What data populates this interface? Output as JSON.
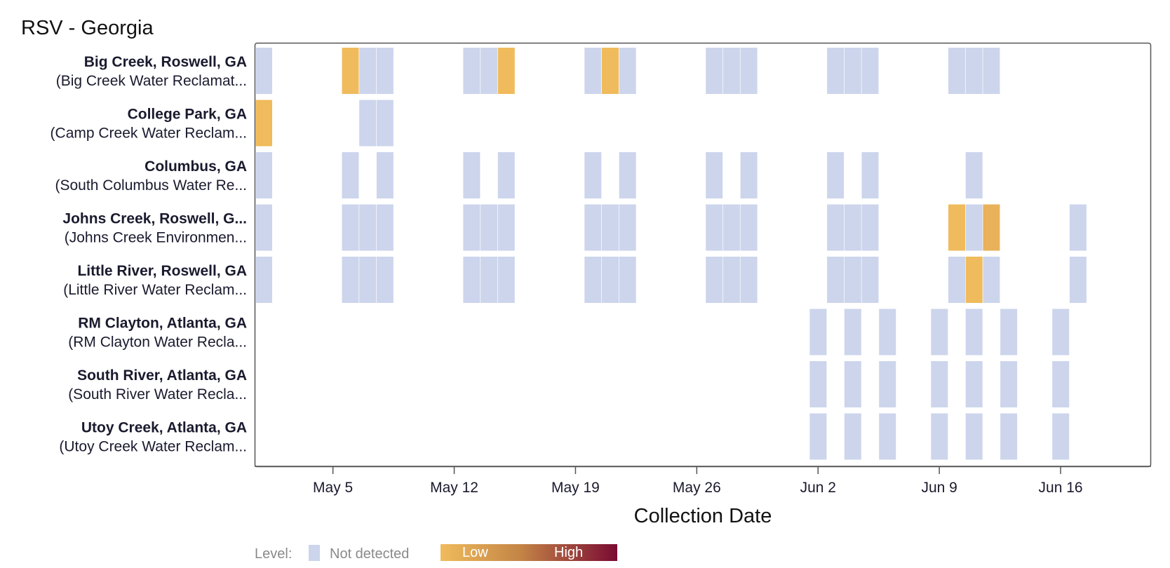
{
  "chart_data": {
    "type": "heatmap",
    "title": "RSV - Georgia",
    "xlabel": "Collection Date",
    "ylabel": "",
    "x_range_day": [
      0,
      51
    ],
    "x_ticks": [
      {
        "label": "May 5",
        "day": 4
      },
      {
        "label": "May 12",
        "day": 11
      },
      {
        "label": "May 19",
        "day": 18
      },
      {
        "label": "May 26",
        "day": 25
      },
      {
        "label": "Jun 2",
        "day": 32
      },
      {
        "label": "Jun 9",
        "day": 39
      },
      {
        "label": "Jun 16",
        "day": 46
      }
    ],
    "day_zero_date": "May 1",
    "colors": {
      "not_detected": "#ccd5ec",
      "low": "#f0bb5c",
      "mid": "#c48546",
      "high": "#7a0a33",
      "axis": "#555555",
      "title_text": "#111111",
      "label_text": "#1a1a2e"
    },
    "sites": [
      {
        "name": "Big Creek, Roswell, GA",
        "facility": "(Big Creek Water Reclamat...",
        "cells": [
          {
            "day": 0,
            "level": "not_detected"
          },
          {
            "day": 5,
            "level": "low"
          },
          {
            "day": 6,
            "level": "not_detected"
          },
          {
            "day": 7,
            "level": "not_detected"
          },
          {
            "day": 12,
            "level": "not_detected"
          },
          {
            "day": 13,
            "level": "not_detected"
          },
          {
            "day": 14,
            "level": "low"
          },
          {
            "day": 19,
            "level": "not_detected"
          },
          {
            "day": 20,
            "level": "low"
          },
          {
            "day": 21,
            "level": "not_detected"
          },
          {
            "day": 26,
            "level": "not_detected"
          },
          {
            "day": 27,
            "level": "not_detected"
          },
          {
            "day": 28,
            "level": "not_detected"
          },
          {
            "day": 33,
            "level": "not_detected"
          },
          {
            "day": 34,
            "level": "not_detected"
          },
          {
            "day": 35,
            "level": "not_detected"
          },
          {
            "day": 40,
            "level": "not_detected"
          },
          {
            "day": 41,
            "level": "not_detected"
          },
          {
            "day": 42,
            "level": "not_detected"
          }
        ]
      },
      {
        "name": "College Park, GA",
        "facility": "(Camp Creek Water Reclam...",
        "cells": [
          {
            "day": 0,
            "level": "low"
          },
          {
            "day": 6,
            "level": "not_detected"
          },
          {
            "day": 7,
            "level": "not_detected"
          }
        ]
      },
      {
        "name": "Columbus, GA",
        "facility": "(South Columbus Water Re...",
        "cells": [
          {
            "day": 0,
            "level": "not_detected"
          },
          {
            "day": 5,
            "level": "not_detected"
          },
          {
            "day": 7,
            "level": "not_detected"
          },
          {
            "day": 12,
            "level": "not_detected"
          },
          {
            "day": 14,
            "level": "not_detected"
          },
          {
            "day": 19,
            "level": "not_detected"
          },
          {
            "day": 21,
            "level": "not_detected"
          },
          {
            "day": 26,
            "level": "not_detected"
          },
          {
            "day": 28,
            "level": "not_detected"
          },
          {
            "day": 33,
            "level": "not_detected"
          },
          {
            "day": 35,
            "level": "not_detected"
          },
          {
            "day": 41,
            "level": "not_detected"
          }
        ]
      },
      {
        "name": "Johns Creek, Roswell, G...",
        "facility": "(Johns Creek Environmen...",
        "cells": [
          {
            "day": 0,
            "level": "not_detected"
          },
          {
            "day": 5,
            "level": "not_detected"
          },
          {
            "day": 6,
            "level": "not_detected"
          },
          {
            "day": 7,
            "level": "not_detected"
          },
          {
            "day": 12,
            "level": "not_detected"
          },
          {
            "day": 13,
            "level": "not_detected"
          },
          {
            "day": 14,
            "level": "not_detected"
          },
          {
            "day": 19,
            "level": "not_detected"
          },
          {
            "day": 20,
            "level": "not_detected"
          },
          {
            "day": 21,
            "level": "not_detected"
          },
          {
            "day": 26,
            "level": "not_detected"
          },
          {
            "day": 27,
            "level": "not_detected"
          },
          {
            "day": 28,
            "level": "not_detected"
          },
          {
            "day": 33,
            "level": "not_detected"
          },
          {
            "day": 34,
            "level": "not_detected"
          },
          {
            "day": 35,
            "level": "not_detected"
          },
          {
            "day": 40,
            "level": "low"
          },
          {
            "day": 41,
            "level": "not_detected"
          },
          {
            "day": 42,
            "level": "low_plus"
          },
          {
            "day": 47,
            "level": "not_detected"
          }
        ]
      },
      {
        "name": "Little River, Roswell, GA",
        "facility": "(Little River Water Reclam...",
        "cells": [
          {
            "day": 0,
            "level": "not_detected"
          },
          {
            "day": 5,
            "level": "not_detected"
          },
          {
            "day": 6,
            "level": "not_detected"
          },
          {
            "day": 7,
            "level": "not_detected"
          },
          {
            "day": 12,
            "level": "not_detected"
          },
          {
            "day": 13,
            "level": "not_detected"
          },
          {
            "day": 14,
            "level": "not_detected"
          },
          {
            "day": 19,
            "level": "not_detected"
          },
          {
            "day": 20,
            "level": "not_detected"
          },
          {
            "day": 21,
            "level": "not_detected"
          },
          {
            "day": 26,
            "level": "not_detected"
          },
          {
            "day": 27,
            "level": "not_detected"
          },
          {
            "day": 28,
            "level": "not_detected"
          },
          {
            "day": 33,
            "level": "not_detected"
          },
          {
            "day": 34,
            "level": "not_detected"
          },
          {
            "day": 35,
            "level": "not_detected"
          },
          {
            "day": 40,
            "level": "not_detected"
          },
          {
            "day": 41,
            "level": "low"
          },
          {
            "day": 42,
            "level": "not_detected"
          },
          {
            "day": 47,
            "level": "not_detected"
          }
        ]
      },
      {
        "name": "RM Clayton, Atlanta, GA",
        "facility": "(RM Clayton Water Recla...",
        "cells": [
          {
            "day": 32,
            "level": "not_detected"
          },
          {
            "day": 34,
            "level": "not_detected"
          },
          {
            "day": 36,
            "level": "not_detected"
          },
          {
            "day": 39,
            "level": "not_detected"
          },
          {
            "day": 41,
            "level": "not_detected"
          },
          {
            "day": 43,
            "level": "not_detected"
          },
          {
            "day": 46,
            "level": "not_detected"
          }
        ]
      },
      {
        "name": "South River, Atlanta, GA",
        "facility": "(South River Water Recla...",
        "cells": [
          {
            "day": 32,
            "level": "not_detected"
          },
          {
            "day": 34,
            "level": "not_detected"
          },
          {
            "day": 36,
            "level": "not_detected"
          },
          {
            "day": 39,
            "level": "not_detected"
          },
          {
            "day": 41,
            "level": "not_detected"
          },
          {
            "day": 43,
            "level": "not_detected"
          },
          {
            "day": 46,
            "level": "not_detected"
          }
        ]
      },
      {
        "name": "Utoy Creek, Atlanta, GA",
        "facility": "(Utoy Creek Water Reclam...",
        "cells": [
          {
            "day": 32,
            "level": "not_detected"
          },
          {
            "day": 34,
            "level": "not_detected"
          },
          {
            "day": 36,
            "level": "not_detected"
          },
          {
            "day": 39,
            "level": "not_detected"
          },
          {
            "day": 41,
            "level": "not_detected"
          },
          {
            "day": 43,
            "level": "not_detected"
          },
          {
            "day": 46,
            "level": "not_detected"
          }
        ]
      }
    ],
    "legend": {
      "title": "Level:",
      "not_detected_label": "Not detected",
      "low_label": "Low",
      "high_label": "High"
    }
  }
}
